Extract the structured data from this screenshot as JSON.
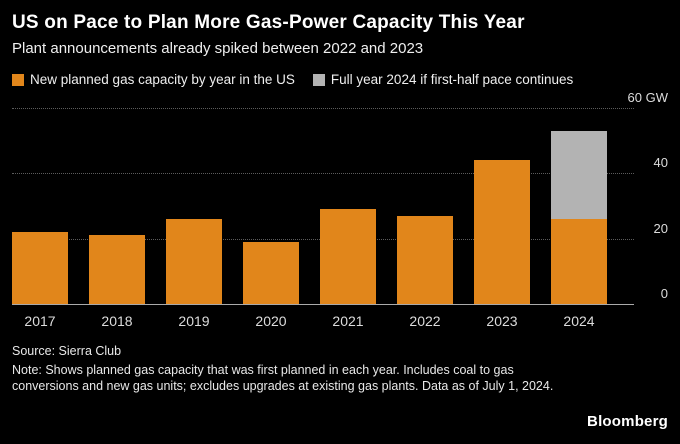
{
  "header": {
    "title": "US on Pace to Plan More Gas-Power Capacity This Year",
    "subtitle": "Plant announcements already spiked between 2022 and 2023"
  },
  "legend": [
    {
      "label": "New planned gas capacity by year in the US",
      "color": "#E1861B"
    },
    {
      "label": "Full year 2024 if first-half pace continues",
      "color": "#B3B3B3"
    }
  ],
  "chart_data": {
    "type": "bar",
    "stacked": true,
    "categories": [
      "2017",
      "2018",
      "2019",
      "2020",
      "2021",
      "2022",
      "2023",
      "2024"
    ],
    "series": [
      {
        "name": "New planned gas capacity by year in the US",
        "color": "#E1861B",
        "values": [
          22,
          21,
          26,
          19,
          29,
          27,
          44,
          26
        ]
      },
      {
        "name": "Full year 2024 if first-half pace continues",
        "color": "#B3B3B3",
        "values": [
          0,
          0,
          0,
          0,
          0,
          0,
          0,
          27
        ]
      }
    ],
    "ylabel": "GW",
    "ylim": [
      0,
      60
    ],
    "yticks": [
      0,
      20,
      40,
      60
    ],
    "ytick_labels": [
      "0",
      "20",
      "40",
      "60 GW"
    ],
    "grid": "dotted-horizontal",
    "legend_position": "top-left",
    "background": "#000000"
  },
  "footer": {
    "source": "Source: Sierra Club",
    "note": "Note: Shows planned gas capacity that was first planned in each year. Includes coal to gas conversions and new gas units; excludes upgrades at existing gas plants. Data as of July 1, 2024.",
    "brand": "Bloomberg"
  },
  "colors": {
    "background": "#000000",
    "bar_orange": "#E1861B",
    "bar_gray": "#B3B3B3",
    "gridline": "#5C5C5C",
    "axis": "#AAAAAA",
    "text_primary": "#FFFFFF",
    "text_secondary": "#DCDCDC"
  }
}
